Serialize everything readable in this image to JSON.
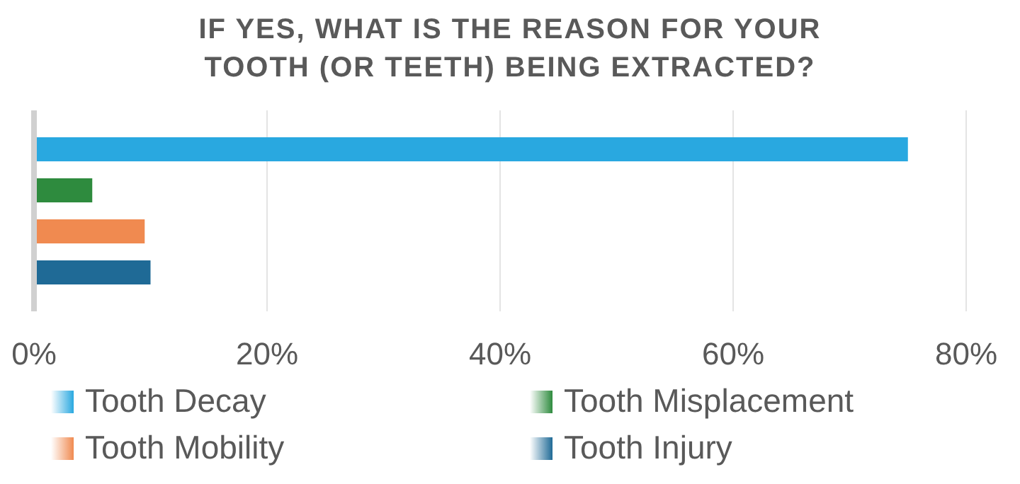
{
  "chart_data": {
    "type": "bar",
    "orientation": "horizontal",
    "title": "IF YES, WHAT IS THE REASON FOR YOUR TOOTH (OR TEETH) BEING EXTRACTED?",
    "categories": [
      null
    ],
    "series": [
      {
        "name": "Tooth Decay",
        "color": "#29a8e0",
        "values": [
          75
        ]
      },
      {
        "name": "Tooth Misplacement",
        "color": "#2e8b3e",
        "values": [
          5
        ]
      },
      {
        "name": "Tooth Mobility",
        "color": "#f08a50",
        "values": [
          9.5
        ]
      },
      {
        "name": "Tooth Injury",
        "color": "#1f6a96",
        "values": [
          10
        ]
      }
    ],
    "xlim": [
      0,
      80
    ],
    "xticks": [
      {
        "value": 0,
        "label": "0%"
      },
      {
        "value": 20,
        "label": "20%"
      },
      {
        "value": 40,
        "label": "40%"
      },
      {
        "value": 60,
        "label": "60%"
      },
      {
        "value": 80,
        "label": "80%"
      }
    ],
    "grid": "x",
    "legend": "bottom"
  }
}
